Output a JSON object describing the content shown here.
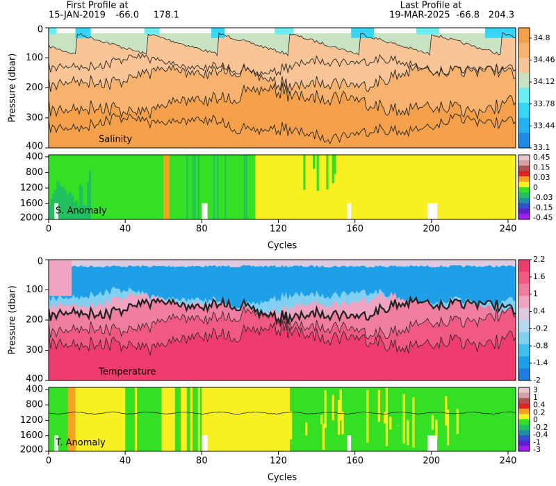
{
  "header": {
    "first": {
      "label": "First Profile at",
      "date": "15-JAN-2019",
      "lat": "-66.0",
      "lon": "178.1"
    },
    "last": {
      "label": "Last Profile at",
      "date": "19-MAR-2025",
      "lat": "-66.8",
      "lon": "204.3"
    }
  },
  "chart_data": [
    {
      "type": "contour",
      "field": "salinity",
      "label": "Salinity",
      "ylabel": "Pressure (dbar)",
      "xlim": [
        0,
        244
      ],
      "ylim": [
        0,
        400
      ],
      "yticks": [
        0,
        100,
        200,
        300,
        400
      ],
      "colorbar": {
        "lim": [
          33.1,
          34.96
        ],
        "ticks": [
          34.8,
          34.46,
          34.12,
          33.78,
          33.44,
          33.1
        ],
        "colors": [
          "#f5a04a",
          "#f7b26e",
          "#f9c596",
          "#c8e2c2",
          "#6af0f2",
          "#36d6f6",
          "#22b2f0",
          "#1e8ae8"
        ]
      }
    },
    {
      "type": "anomaly",
      "field": "salinity",
      "label": "S. Anomaly",
      "xlabel": "Cycles",
      "xlim": [
        0,
        244
      ],
      "ylim": [
        350,
        2000
      ],
      "yticks": [
        400,
        800,
        1200,
        1600,
        2000
      ],
      "xticks": [
        0,
        40,
        80,
        120,
        160,
        200,
        240
      ],
      "colorbar": {
        "levels": [
          0.45,
          0.15,
          0.03,
          0,
          -0.03,
          -0.15,
          -0.45
        ],
        "colors": [
          "#e8c8cc",
          "#d4a0a8",
          "#b05050",
          "#e02424",
          "#f8a020",
          "#f8f020",
          "#34e024",
          "#20c060",
          "#2090a0",
          "#3050d0",
          "#6020d0",
          "#a020f0"
        ]
      }
    },
    {
      "type": "contour",
      "field": "temperature",
      "label": "Temperature",
      "ylabel": "Pressure (dbar)",
      "xlim": [
        0,
        244
      ],
      "ylim": [
        0,
        400
      ],
      "yticks": [
        0,
        100,
        200,
        300,
        400
      ],
      "colorbar": {
        "lim": [
          -2,
          2.2
        ],
        "ticks": [
          2.2,
          1.6,
          1,
          0.4,
          -0.2,
          -0.8,
          -1.4,
          -2
        ],
        "colors": [
          "#f03c6c",
          "#f05a82",
          "#f07ea0",
          "#f0a4c2",
          "#dccade",
          "#b4d8f0",
          "#80d0f2",
          "#40c0f0",
          "#1ea0e8",
          "#1e7ce2"
        ]
      }
    },
    {
      "type": "anomaly",
      "field": "temperature",
      "label": "T. Anomaly",
      "xlabel": "Cycles",
      "xlim": [
        0,
        244
      ],
      "ylim": [
        350,
        2000
      ],
      "yticks": [
        400,
        800,
        1200,
        1600,
        2000
      ],
      "xticks": [
        0,
        40,
        80,
        120,
        160,
        200,
        240
      ],
      "colorbar": {
        "levels": [
          3,
          1,
          0.4,
          0.2,
          0,
          -0.2,
          -0.4,
          -1,
          -3
        ],
        "colors": [
          "#e8c8cc",
          "#d4a0a8",
          "#b05050",
          "#e02424",
          "#f8a020",
          "#f8f020",
          "#34e024",
          "#20c060",
          "#2090a0",
          "#3050d0",
          "#6020d0",
          "#a020f0"
        ]
      }
    }
  ]
}
